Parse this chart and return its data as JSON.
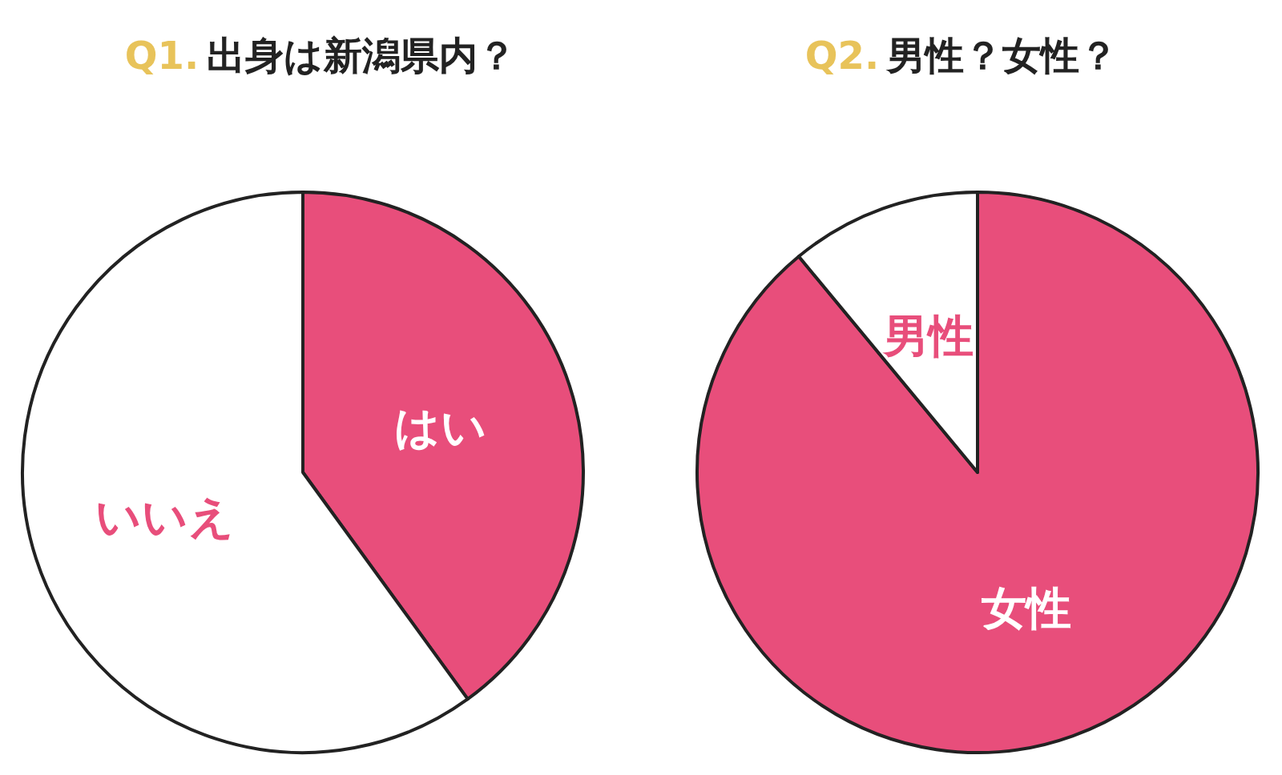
{
  "chart_data": [
    {
      "type": "pie",
      "title": "Q1. 出身は新潟県内？",
      "categories": [
        "はい",
        "いいえ"
      ],
      "values": [
        40,
        60
      ],
      "colors": [
        "#e84e7b",
        "#ffffff"
      ]
    },
    {
      "type": "pie",
      "title": "Q2. 男性？女性？",
      "categories": [
        "女性",
        "男性"
      ],
      "values": [
        89,
        11
      ],
      "colors": [
        "#e84e7b",
        "#ffffff"
      ]
    }
  ]
}
